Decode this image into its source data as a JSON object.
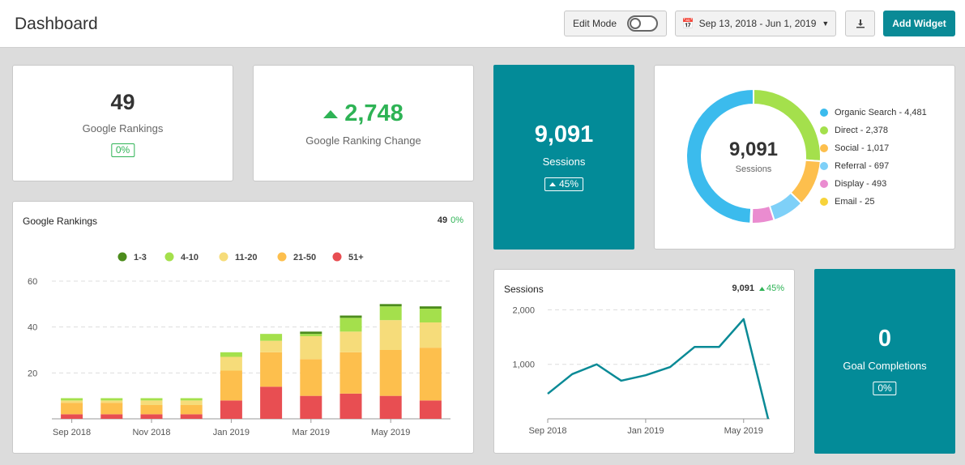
{
  "header": {
    "title": "Dashboard",
    "edit_mode_label": "Edit Mode",
    "edit_mode_on": false,
    "date_range": "Sep 13, 2018 - Jun 1, 2019",
    "add_widget_label": "Add Widget"
  },
  "rankings_card": {
    "value": "49",
    "label": "Google Rankings",
    "badge": "0%"
  },
  "ranking_change_card": {
    "value": "2,748",
    "label": "Google Ranking Change"
  },
  "sessions_card": {
    "value": "9,091",
    "label": "Sessions",
    "badge": "45%"
  },
  "goal_card": {
    "value": "0",
    "label": "Goal Completions",
    "badge": "0%"
  },
  "donut_card": {
    "center_value": "9,091",
    "center_label": "Sessions",
    "legend": [
      {
        "label": "Organic Search - 4,481",
        "color": "#3bbbed"
      },
      {
        "label": "Direct - 2,378",
        "color": "#a4e04c"
      },
      {
        "label": "Social - 1,017",
        "color": "#fdbf4d"
      },
      {
        "label": "Referral - 697",
        "color": "#7ed0f8"
      },
      {
        "label": "Display - 493",
        "color": "#ea8cd0"
      },
      {
        "label": "Email - 25",
        "color": "#f7d33a"
      }
    ]
  },
  "rankings_chart_card": {
    "title": "Google Rankings",
    "value": "49",
    "change": "0%"
  },
  "sessions_chart_card": {
    "title": "Sessions",
    "value": "9,091",
    "change": "45%"
  },
  "chart_data": [
    {
      "type": "bar",
      "stacked": true,
      "title": "Google Rankings",
      "categories": [
        "Sep 2018",
        "",
        "Nov 2018",
        "",
        "Jan 2019",
        "",
        "Mar 2019",
        "",
        "May 2019",
        ""
      ],
      "tick_labels": [
        "Sep 2018",
        "Nov 2018",
        "Jan 2019",
        "Mar 2019",
        "May 2019"
      ],
      "series": [
        {
          "name": "51+",
          "color": "#e84e52",
          "values": [
            2,
            2,
            2,
            2,
            8,
            14,
            10,
            11,
            10,
            8
          ]
        },
        {
          "name": "21-50",
          "color": "#fdbf4d",
          "values": [
            5,
            5,
            4,
            4,
            13,
            15,
            16,
            18,
            20,
            23
          ]
        },
        {
          "name": "11-20",
          "color": "#f6dc7a",
          "values": [
            1,
            1,
            2,
            2,
            6,
            5,
            10,
            9,
            13,
            11
          ]
        },
        {
          "name": "4-10",
          "color": "#a4e04c",
          "values": [
            1,
            1,
            1,
            1,
            2,
            3,
            1,
            6,
            6,
            6
          ]
        },
        {
          "name": "1-3",
          "color": "#4c8c1c",
          "values": [
            0,
            0,
            0,
            0,
            0,
            0,
            1,
            1,
            1,
            1
          ]
        }
      ],
      "ylim": [
        0,
        60
      ],
      "yticks": [
        20,
        40,
        60
      ],
      "grid": true,
      "legend": "top"
    },
    {
      "type": "line",
      "title": "Sessions",
      "x": [
        "Sep 2018",
        "Oct 2018",
        "Nov 2018",
        "Dec 2018",
        "Jan 2019",
        "Feb 2019",
        "Mar 2019",
        "Apr 2019",
        "May 2019",
        "Jun 2019"
      ],
      "tick_labels": [
        "Sep 2018",
        "Jan 2019",
        "May 2019"
      ],
      "series": [
        {
          "color": "#0a8a96",
          "values": [
            460,
            820,
            1000,
            700,
            800,
            950,
            1320,
            1320,
            1830,
            0
          ]
        }
      ],
      "ylim": [
        0,
        2200
      ],
      "yticks": [
        "1,000",
        "2,000"
      ],
      "grid": true
    }
  ]
}
